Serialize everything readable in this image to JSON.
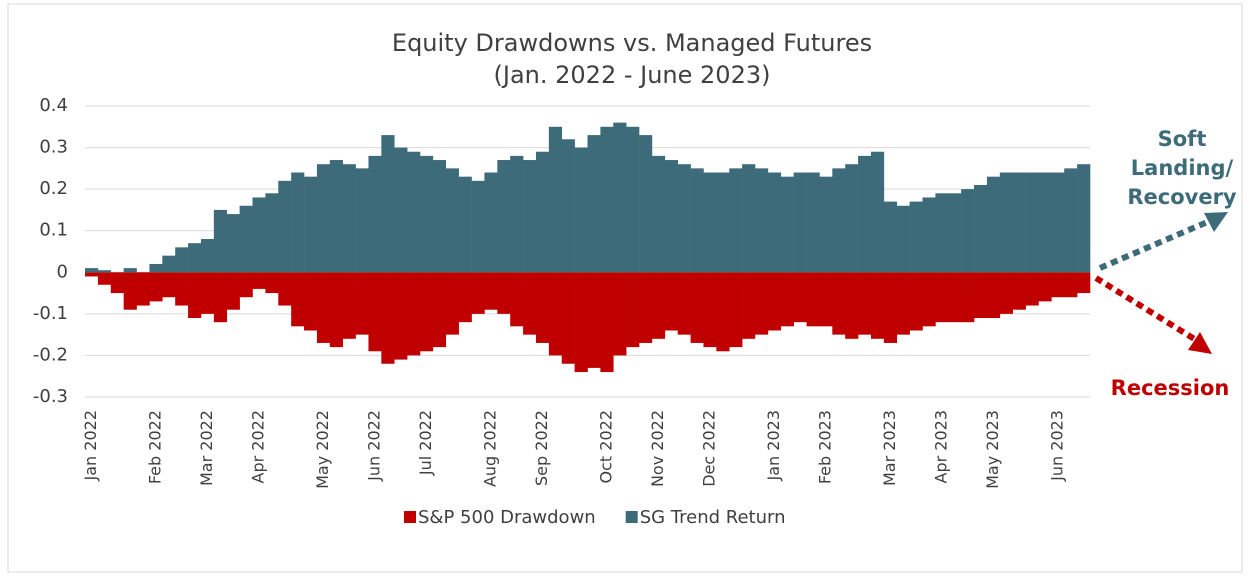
{
  "chart_data": {
    "type": "bar",
    "title": "Equity Drawdowns vs. Managed Futures",
    "subtitle": "(Jan. 2022 - June 2023)",
    "categories": [
      "Jan 2022",
      null,
      null,
      null,
      null,
      "Feb 2022",
      null,
      null,
      null,
      "Mar 2022",
      null,
      null,
      null,
      "Apr 2022",
      null,
      null,
      null,
      null,
      "May 2022",
      null,
      null,
      null,
      "Jun 2022",
      null,
      null,
      null,
      "Jul 2022",
      null,
      null,
      null,
      null,
      "Aug 2022",
      null,
      null,
      null,
      "Sep 2022",
      null,
      null,
      null,
      null,
      "Oct 2022",
      null,
      null,
      null,
      "Nov 2022",
      null,
      null,
      null,
      "Dec 2022",
      null,
      null,
      null,
      null,
      "Jan 2023",
      null,
      null,
      null,
      "Feb 2023",
      null,
      null,
      null,
      null,
      "Mar 2023",
      null,
      null,
      null,
      "Apr 2023",
      null,
      null,
      null,
      "May 2023",
      null,
      null,
      null,
      null,
      "Jun 2023",
      null,
      null
    ],
    "series": [
      {
        "name": "S&P 500 Drawdown",
        "color": "#c00000",
        "values": [
          -0.01,
          -0.03,
          -0.05,
          -0.09,
          -0.08,
          -0.07,
          -0.06,
          -0.08,
          -0.11,
          -0.1,
          -0.12,
          -0.09,
          -0.06,
          -0.04,
          -0.05,
          -0.08,
          -0.13,
          -0.14,
          -0.17,
          -0.18,
          -0.16,
          -0.15,
          -0.19,
          -0.22,
          -0.21,
          -0.2,
          -0.19,
          -0.18,
          -0.15,
          -0.12,
          -0.1,
          -0.09,
          -0.1,
          -0.13,
          -0.15,
          -0.17,
          -0.2,
          -0.22,
          -0.24,
          -0.23,
          -0.24,
          -0.2,
          -0.18,
          -0.17,
          -0.16,
          -0.14,
          -0.15,
          -0.17,
          -0.18,
          -0.19,
          -0.18,
          -0.16,
          -0.15,
          -0.14,
          -0.13,
          -0.12,
          -0.13,
          -0.13,
          -0.15,
          -0.16,
          -0.15,
          -0.16,
          -0.17,
          -0.15,
          -0.14,
          -0.13,
          -0.12,
          -0.12,
          -0.12,
          -0.11,
          -0.11,
          -0.1,
          -0.09,
          -0.08,
          -0.07,
          -0.06,
          -0.06,
          -0.05
        ]
      },
      {
        "name": "SG Trend Return",
        "color": "#3d6b7a",
        "values": [
          0.01,
          0.005,
          0.0,
          0.01,
          0.0,
          0.02,
          0.04,
          0.06,
          0.07,
          0.08,
          0.15,
          0.14,
          0.16,
          0.18,
          0.19,
          0.22,
          0.24,
          0.23,
          0.26,
          0.27,
          0.26,
          0.25,
          0.28,
          0.33,
          0.3,
          0.29,
          0.28,
          0.27,
          0.25,
          0.23,
          0.22,
          0.24,
          0.27,
          0.28,
          0.27,
          0.29,
          0.35,
          0.32,
          0.3,
          0.33,
          0.35,
          0.36,
          0.35,
          0.33,
          0.28,
          0.27,
          0.26,
          0.25,
          0.24,
          0.24,
          0.25,
          0.26,
          0.25,
          0.24,
          0.23,
          0.24,
          0.24,
          0.23,
          0.25,
          0.26,
          0.28,
          0.29,
          0.17,
          0.16,
          0.17,
          0.18,
          0.19,
          0.19,
          0.2,
          0.21,
          0.23,
          0.24,
          0.24,
          0.24,
          0.24,
          0.24,
          0.25,
          0.26
        ]
      }
    ],
    "ylim": [
      -0.3,
      0.4
    ],
    "yticks": [
      -0.3,
      -0.2,
      -0.1,
      0,
      0.1,
      0.2,
      0.3,
      0.4
    ],
    "grid": true,
    "legend": "bottom",
    "annotations": [
      {
        "lines": [
          "Soft",
          "Landing/",
          "Recovery"
        ],
        "color": "#3d6b7a"
      },
      {
        "lines": [
          "Recession"
        ],
        "color": "#c00000"
      }
    ]
  }
}
